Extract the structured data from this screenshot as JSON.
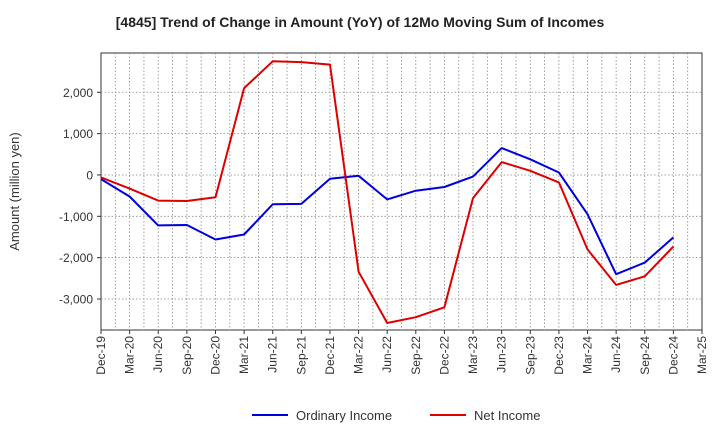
{
  "chart_data": {
    "type": "line",
    "title": "[4845]  Trend of Change in Amount (YoY) of 12Mo Moving Sum of Incomes",
    "xlabel": "",
    "ylabel": "Amount (million yen)",
    "ylim": [
      -3750,
      2950
    ],
    "yticks": [
      2000,
      1000,
      0,
      -1000,
      -2000,
      -3000
    ],
    "ytick_labels": [
      "2,000",
      "1,000",
      "0",
      "-1,000",
      "-2,000",
      "-3,000"
    ],
    "x": [
      "Dec-19",
      "Mar-20",
      "Jun-20",
      "Sep-20",
      "Dec-20",
      "Mar-21",
      "Jun-21",
      "Sep-21",
      "Dec-21",
      "Mar-22",
      "Jun-22",
      "Sep-22",
      "Dec-22",
      "Mar-23",
      "Jun-23",
      "Sep-23",
      "Dec-23",
      "Mar-24",
      "Jun-24",
      "Sep-24",
      "Dec-24",
      "Mar-25"
    ],
    "grid": true,
    "legend_position": "bottom",
    "series": [
      {
        "name": "Ordinary Income",
        "color": "#0000dd",
        "values": [
          -100,
          -520,
          -1220,
          -1210,
          -1560,
          -1440,
          -710,
          -700,
          -90,
          -20,
          -590,
          -380,
          -290,
          -40,
          650,
          380,
          60,
          -950,
          -2400,
          -2120,
          -1510,
          null
        ]
      },
      {
        "name": "Net Income",
        "color": "#dd0000",
        "values": [
          -60,
          -330,
          -620,
          -630,
          -540,
          2100,
          2750,
          2730,
          2670,
          -2340,
          -3580,
          -3440,
          -3200,
          -560,
          310,
          100,
          -180,
          -1800,
          -2660,
          -2450,
          -1730,
          null
        ]
      }
    ]
  }
}
